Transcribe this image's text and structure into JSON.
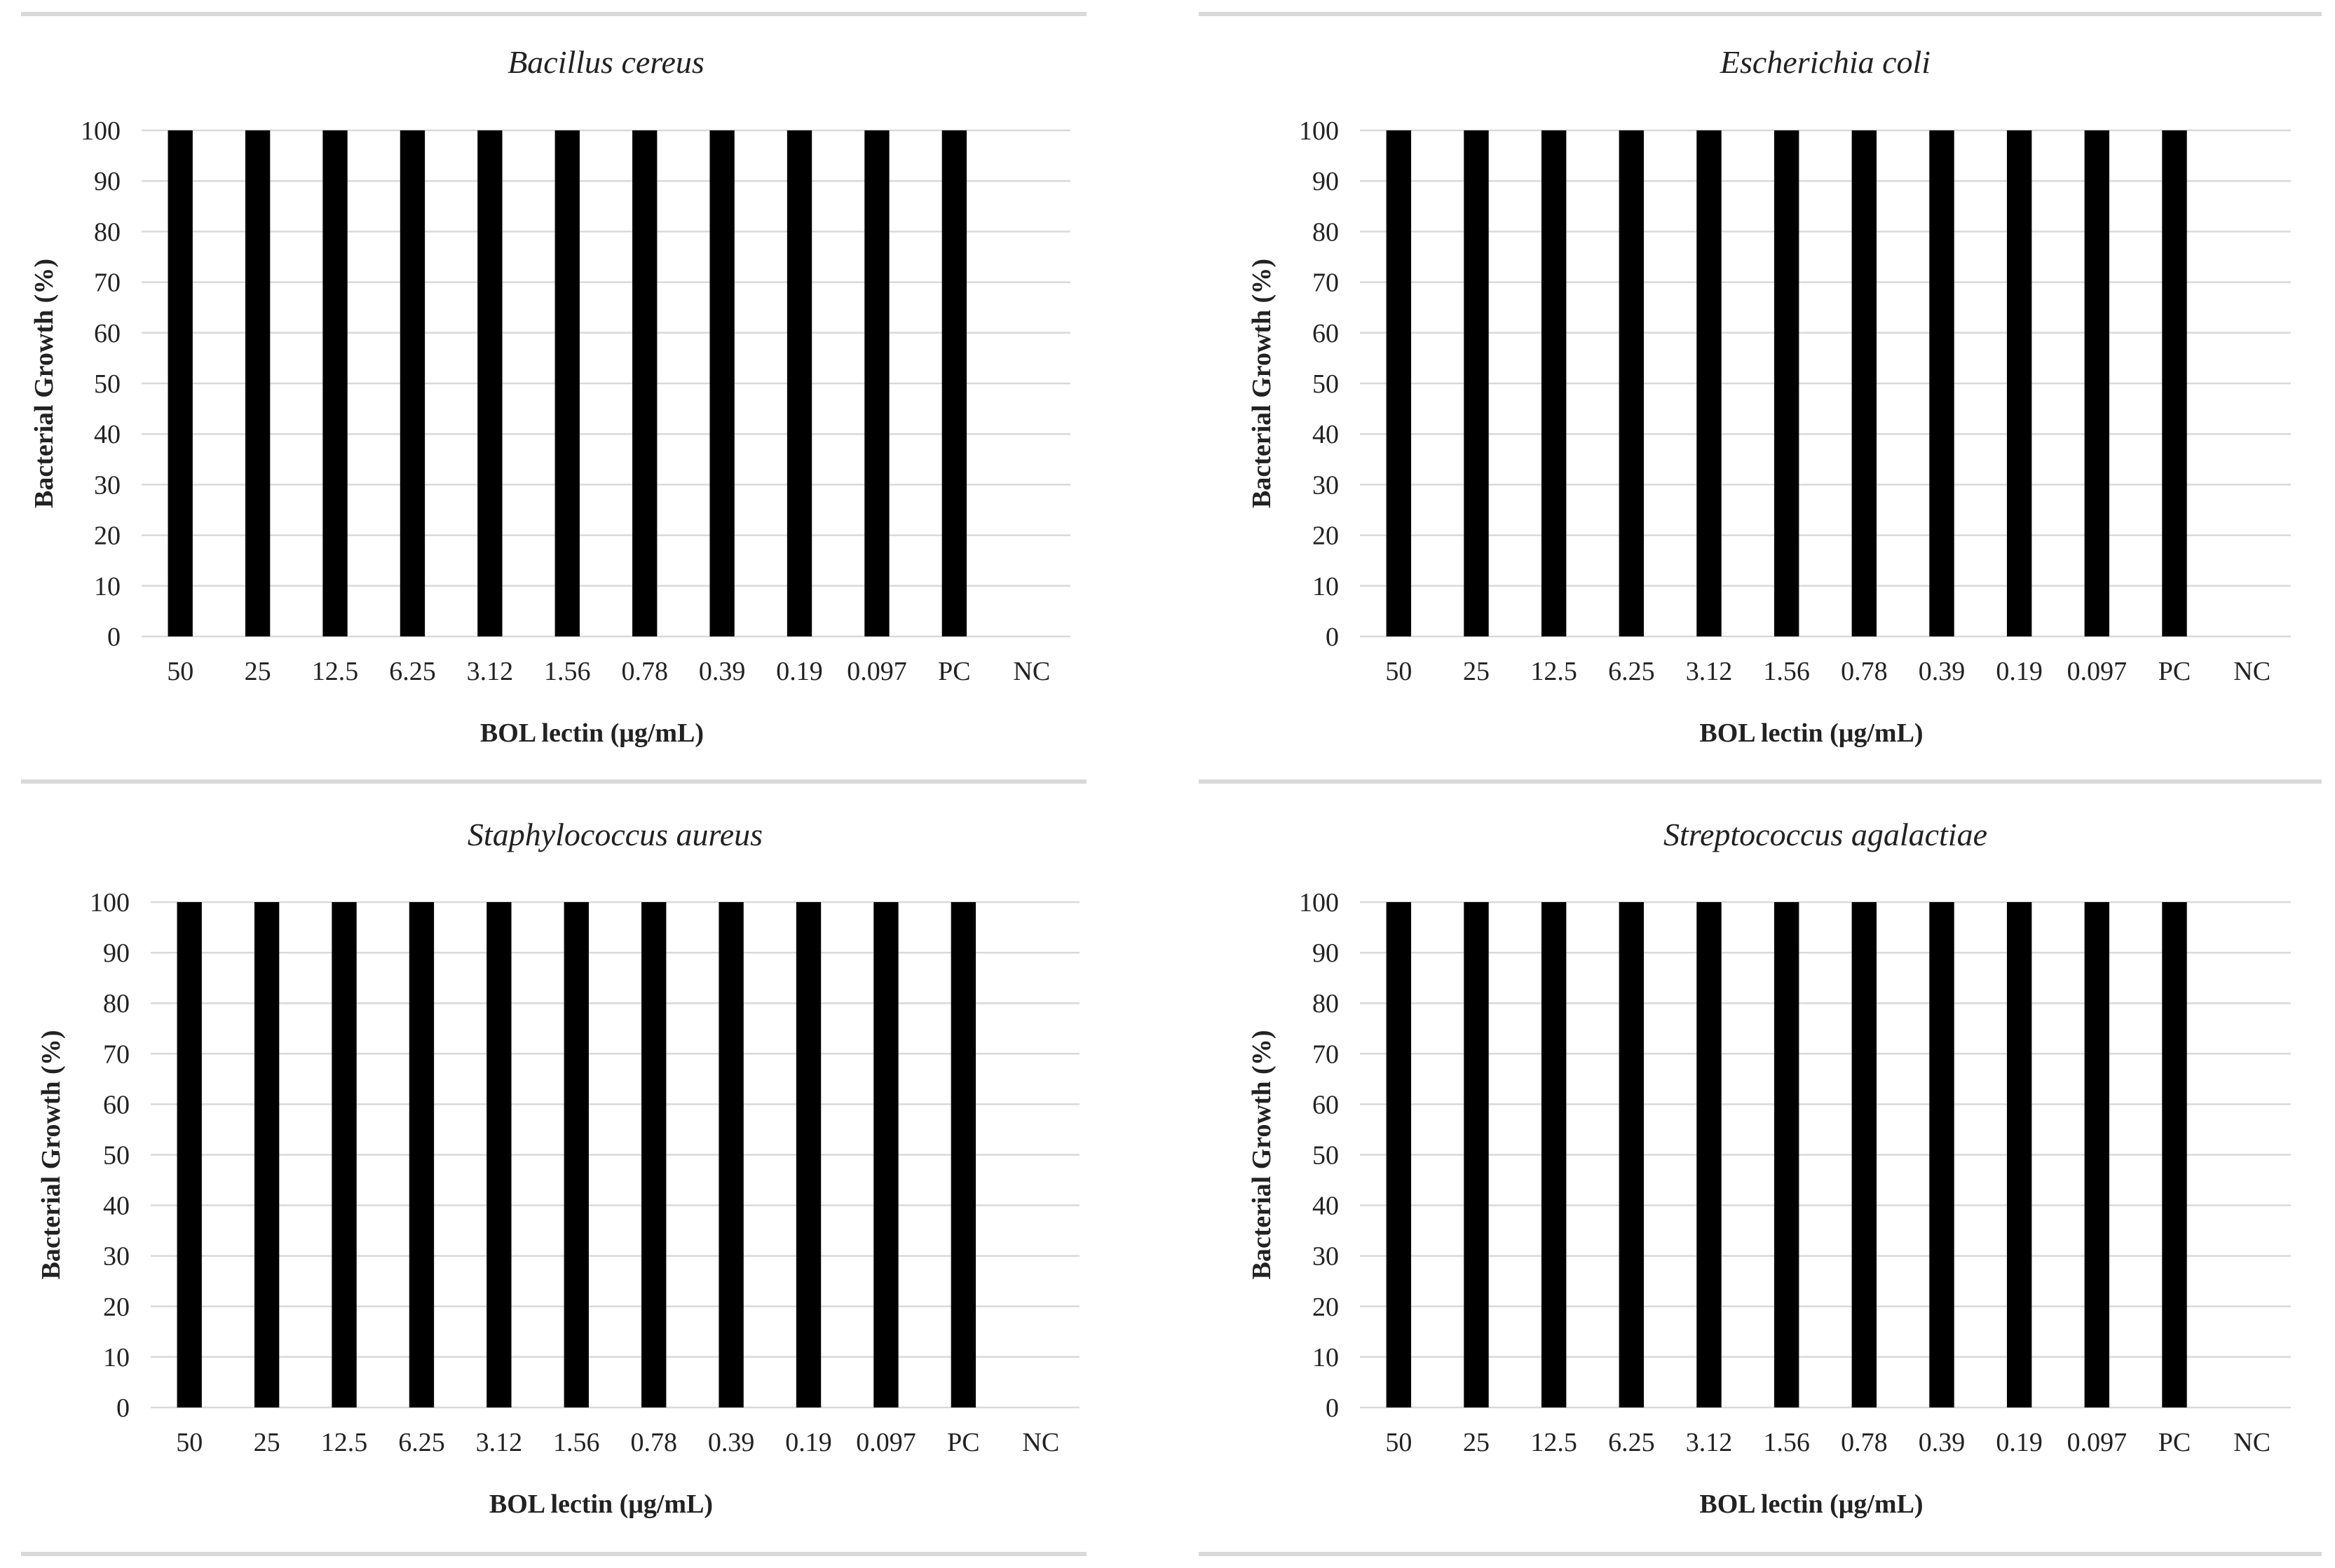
{
  "figure": {
    "colors": {
      "bar": "#000000",
      "grid": "#d9d9d9",
      "text": "#222222",
      "divider": "#d9d9d9"
    }
  },
  "chart_data": [
    {
      "type": "bar",
      "title": "Bacillus cereus",
      "xlabel": "BOL lectin (μg/mL)",
      "ylabel": "Bacterial Growth (%)",
      "ylim": [
        0,
        100
      ],
      "yticks": [
        0,
        10,
        20,
        30,
        40,
        50,
        60,
        70,
        80,
        90,
        100
      ],
      "grid": true,
      "categories": [
        "50",
        "25",
        "12.5",
        "6.25",
        "3.12",
        "1.56",
        "0.78",
        "0.39",
        "0.19",
        "0.097",
        "PC",
        "NC"
      ],
      "values": [
        100,
        100,
        100,
        100,
        100,
        100,
        100,
        100,
        100,
        100,
        100,
        0
      ]
    },
    {
      "type": "bar",
      "title": "Escherichia coli",
      "xlabel": "BOL lectin (μg/mL)",
      "ylabel": "Bacterial Growth (%)",
      "ylim": [
        0,
        100
      ],
      "yticks": [
        0,
        10,
        20,
        30,
        40,
        50,
        60,
        70,
        80,
        90,
        100
      ],
      "grid": true,
      "categories": [
        "50",
        "25",
        "12.5",
        "6.25",
        "3.12",
        "1.56",
        "0.78",
        "0.39",
        "0.19",
        "0.097",
        "PC",
        "NC"
      ],
      "values": [
        100,
        100,
        100,
        100,
        100,
        100,
        100,
        100,
        100,
        100,
        100,
        0
      ]
    },
    {
      "type": "bar",
      "title": "Staphylococcus aureus",
      "xlabel": "BOL lectin (μg/mL)",
      "ylabel": "Bacterial Growth (%)",
      "ylim": [
        0,
        100
      ],
      "yticks": [
        0,
        10,
        20,
        30,
        40,
        50,
        60,
        70,
        80,
        90,
        100
      ],
      "grid": true,
      "categories": [
        "50",
        "25",
        "12.5",
        "6.25",
        "3.12",
        "1.56",
        "0.78",
        "0.39",
        "0.19",
        "0.097",
        "PC",
        "NC"
      ],
      "values": [
        100,
        100,
        100,
        100,
        100,
        100,
        100,
        100,
        100,
        100,
        100,
        0
      ]
    },
    {
      "type": "bar",
      "title": "Streptococcus agalactiae",
      "xlabel": "BOL lectin (μg/mL)",
      "ylabel": "Bacterial Growth (%)",
      "ylim": [
        0,
        100
      ],
      "yticks": [
        0,
        10,
        20,
        30,
        40,
        50,
        60,
        70,
        80,
        90,
        100
      ],
      "grid": true,
      "categories": [
        "50",
        "25",
        "12.5",
        "6.25",
        "3.12",
        "1.56",
        "0.78",
        "0.39",
        "0.19",
        "0.097",
        "PC",
        "NC"
      ],
      "values": [
        100,
        100,
        100,
        100,
        100,
        100,
        100,
        100,
        100,
        100,
        100,
        0
      ]
    }
  ]
}
